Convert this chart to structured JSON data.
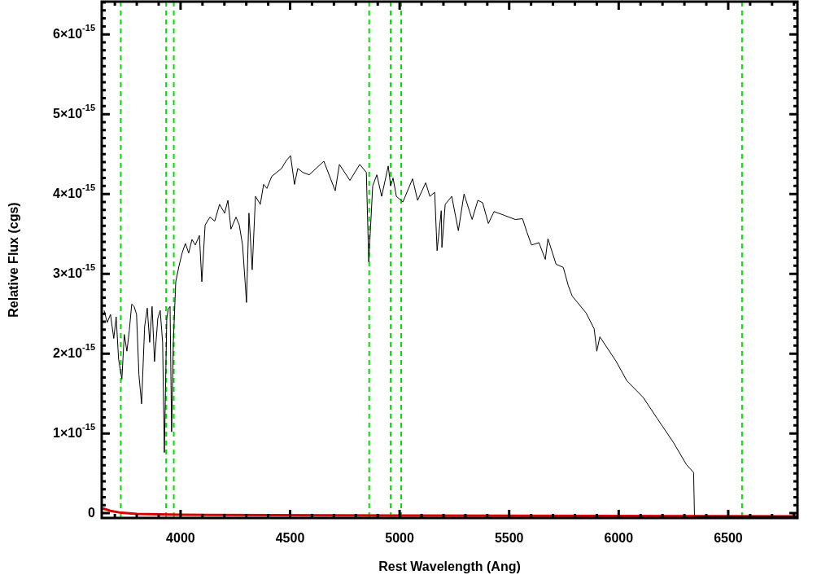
{
  "chart_data": {
    "type": "line",
    "xlabel": "Rest Wavelength (Ang)",
    "ylabel": "Relative Flux (cgs)",
    "marker": "none",
    "xlim": [
      3640,
      6816
    ],
    "ylim": [
      -6e-17,
      6.41e-15
    ],
    "xticks": [
      {
        "value": 3700,
        "label": null
      },
      {
        "value": 3800,
        "label": null
      },
      {
        "value": 3900,
        "label": null
      },
      4000,
      {
        "value": 4100,
        "label": null
      },
      {
        "value": 4200,
        "label": null
      },
      {
        "value": 4300,
        "label": null
      },
      {
        "value": 4400,
        "label": null
      },
      4500,
      {
        "value": 4600,
        "label": null
      },
      {
        "value": 4700,
        "label": null
      },
      {
        "value": 4800,
        "label": null
      },
      {
        "value": 4900,
        "label": null
      },
      5000,
      {
        "value": 5100,
        "label": null
      },
      {
        "value": 5200,
        "label": null
      },
      {
        "value": 5300,
        "label": null
      },
      {
        "value": 5400,
        "label": null
      },
      5500,
      {
        "value": 5600,
        "label": null
      },
      {
        "value": 5700,
        "label": null
      },
      {
        "value": 5800,
        "label": null
      },
      {
        "value": 5900,
        "label": null
      },
      6000,
      {
        "value": 6100,
        "label": null
      },
      {
        "value": 6200,
        "label": null
      },
      {
        "value": 6300,
        "label": null
      },
      {
        "value": 6400,
        "label": null
      },
      6500,
      {
        "value": 6600,
        "label": null
      },
      {
        "value": 6700,
        "label": null
      },
      {
        "value": 6800,
        "label": null
      }
    ],
    "yticks": [
      0,
      {
        "value": 1e-16,
        "label": null
      },
      {
        "value": 2e-16,
        "label": null
      },
      {
        "value": 3e-16,
        "label": null
      },
      {
        "value": 4e-16,
        "label": null
      },
      {
        "value": 5e-16,
        "label": null
      },
      {
        "value": 6e-16,
        "label": null
      },
      {
        "value": 7e-16,
        "label": null
      },
      {
        "value": 8e-16,
        "label": null
      },
      {
        "value": 9e-16,
        "label": null
      },
      {
        "value": 1e-15,
        "label": "1×10$^{-15}$"
      },
      {
        "value": 1.1e-15,
        "label": null
      },
      {
        "value": 1.2e-15,
        "label": null
      },
      {
        "value": 1.3e-15,
        "label": null
      },
      {
        "value": 1.4e-15,
        "label": null
      },
      {
        "value": 1.5e-15,
        "label": null
      },
      {
        "value": 1.6e-15,
        "label": null
      },
      {
        "value": 1.7e-15,
        "label": null
      },
      {
        "value": 1.8e-15,
        "label": null
      },
      {
        "value": 1.9e-15,
        "label": null
      },
      {
        "value": 2e-15,
        "label": "2×10$^{-15}$"
      },
      {
        "value": 2.1e-15,
        "label": null
      },
      {
        "value": 2.2e-15,
        "label": null
      },
      {
        "value": 2.3e-15,
        "label": null
      },
      {
        "value": 2.4e-15,
        "label": null
      },
      {
        "value": 2.5e-15,
        "label": null
      },
      {
        "value": 2.6e-15,
        "label": null
      },
      {
        "value": 2.7e-15,
        "label": null
      },
      {
        "value": 2.8e-15,
        "label": null
      },
      {
        "value": 2.9e-15,
        "label": null
      },
      {
        "value": 3e-15,
        "label": "3×10$^{-15}$"
      },
      {
        "value": 3.1e-15,
        "label": null
      },
      {
        "value": 3.2e-15,
        "label": null
      },
      {
        "value": 3.3e-15,
        "label": null
      },
      {
        "value": 3.4e-15,
        "label": null
      },
      {
        "value": 3.5e-15,
        "label": null
      },
      {
        "value": 3.6e-15,
        "label": null
      },
      {
        "value": 3.7e-15,
        "label": null
      },
      {
        "value": 3.8e-15,
        "label": null
      },
      {
        "value": 3.9e-15,
        "label": null
      },
      {
        "value": 4e-15,
        "label": "4×10$^{-15}$"
      },
      {
        "value": 4.1e-15,
        "label": null
      },
      {
        "value": 4.2e-15,
        "label": null
      },
      {
        "value": 4.3e-15,
        "label": null
      },
      {
        "value": 4.4e-15,
        "label": null
      },
      {
        "value": 4.5e-15,
        "label": null
      },
      {
        "value": 4.6e-15,
        "label": null
      },
      {
        "value": 4.7e-15,
        "label": null
      },
      {
        "value": 4.8e-15,
        "label": null
      },
      {
        "value": 4.9e-15,
        "label": null
      },
      {
        "value": 5e-15,
        "label": "5×10$^{-15}$"
      },
      {
        "value": 5.1e-15,
        "label": null
      },
      {
        "value": 5.2e-15,
        "label": null
      },
      {
        "value": 5.3e-15,
        "label": null
      },
      {
        "value": 5.4e-15,
        "label": null
      },
      {
        "value": 5.5e-15,
        "label": null
      },
      {
        "value": 5.6e-15,
        "label": null
      },
      {
        "value": 5.7e-15,
        "label": null
      },
      {
        "value": 5.8e-15,
        "label": null
      },
      {
        "value": 5.9e-15,
        "label": null
      },
      {
        "value": 6e-15,
        "label": "6×10$^{-15}$"
      },
      {
        "value": 6.1e-15,
        "label": null
      },
      {
        "value": 6.2e-15,
        "label": null
      },
      {
        "value": 6.3e-15,
        "label": null
      },
      {
        "value": 6.4e-15,
        "label": null
      }
    ],
    "series": [
      {
        "color": "#000000",
        "x": [
          3651,
          3665,
          3680,
          3695,
          3706,
          3717,
          3732,
          3743,
          3755,
          3766,
          3777,
          3788,
          3799,
          3810,
          3822,
          3836,
          3848,
          3859,
          3870,
          3881,
          3896,
          3907,
          3918,
          3926,
          3937,
          3944,
          3952,
          3959,
          3967,
          3978,
          3993,
          4007,
          4022,
          4037,
          4052,
          4067,
          4086,
          4097,
          4112,
          4134,
          4156,
          4178,
          4201,
          4216,
          4230,
          4253,
          4268,
          4283,
          4301,
          4312,
          4327,
          4342,
          4364,
          4379,
          4394,
          4416,
          4439,
          4461,
          4483,
          4502,
          4520,
          4535,
          4558,
          4587,
          4654,
          4706,
          4725,
          4773,
          4818,
          4848,
          4859,
          4877,
          4896,
          4918,
          4948,
          4959,
          4970,
          4985,
          5015,
          5059,
          5082,
          5119,
          5138,
          5160,
          5171,
          5190,
          5193,
          5208,
          5238,
          5268,
          5294,
          5331,
          5357,
          5379,
          5405,
          5431,
          5480,
          5528,
          5561,
          5580,
          5602,
          5636,
          5665,
          5677,
          5714,
          5747,
          5770,
          5788,
          5851,
          5888,
          5900,
          5914,
          5989,
          6037,
          6112,
          6175,
          6249,
          6309,
          6342,
          6346,
          6816
        ],
        "values": [
          2.54e-15,
          2.39e-15,
          2.49e-15,
          2.19e-15,
          2.46e-15,
          1.93e-15,
          1.68e-15,
          2.24e-15,
          2.03e-15,
          2.29e-15,
          2.62e-15,
          2.59e-15,
          2.49e-15,
          1.73e-15,
          1.37e-15,
          2.34e-15,
          2.57e-15,
          2.14e-15,
          2.59e-15,
          1.9e-15,
          2.44e-15,
          2.54e-15,
          2.14e-15,
          7.6e-16,
          2.44e-15,
          2.56e-15,
          2.59e-15,
          1.02e-15,
          2.14e-15,
          2.9e-15,
          3.1e-15,
          3.26e-15,
          3.38e-15,
          3.26e-15,
          3.43e-15,
          3.36e-15,
          3.48e-15,
          2.9e-15,
          3.61e-15,
          3.71e-15,
          3.66e-15,
          3.87e-15,
          3.76e-15,
          3.92e-15,
          3.56e-15,
          3.71e-15,
          3.61e-15,
          3.36e-15,
          2.64e-15,
          3.76e-15,
          3.05e-15,
          3.97e-15,
          3.87e-15,
          4.12e-15,
          4.07e-15,
          4.22e-15,
          4.27e-15,
          4.32e-15,
          4.42e-15,
          4.48e-15,
          4.12e-15,
          4.32e-15,
          4.27e-15,
          4.24e-15,
          4.41e-15,
          4.04e-15,
          4.37e-15,
          4.17e-15,
          4.37e-15,
          4.27e-15,
          3.15e-15,
          4.1e-15,
          4.24e-15,
          3.97e-15,
          4.35e-15,
          4.1e-15,
          4.2e-15,
          3.97e-15,
          3.9e-15,
          4.19e-15,
          3.92e-15,
          4.14e-15,
          3.97e-15,
          4.02e-15,
          3.29e-15,
          3.79e-15,
          3.33e-15,
          3.87e-15,
          3.97e-15,
          3.54e-15,
          4e-15,
          3.68e-15,
          3.92e-15,
          3.89e-15,
          3.63e-15,
          3.78e-15,
          3.73e-15,
          3.68e-15,
          3.69e-15,
          3.53e-15,
          3.36e-15,
          3.39e-15,
          3.18e-15,
          3.44e-15,
          3.12e-15,
          3.08e-15,
          2.85e-15,
          2.72e-15,
          2.51e-15,
          2.31e-15,
          2.03e-15,
          2.21e-15,
          1.9e-15,
          1.66e-15,
          1.45e-15,
          1.19e-15,
          8.9e-16,
          6.1e-16,
          5.1e-16,
          -4e-17,
          -4e-17
        ]
      },
      {
        "color": "#dd0000",
        "x": [
          3645,
          3680,
          3720,
          3800,
          4000,
          5000,
          6816
        ],
        "values": [
          6e-17,
          3e-17,
          1e-17,
          -1e-17,
          -2e-17,
          -3e-17,
          -4e-17
        ]
      }
    ],
    "ref_lines": [
      {
        "axis": "x",
        "value": 3727,
        "color": "#00e000",
        "line_style": "dashed"
      },
      {
        "axis": "x",
        "value": 3934,
        "color": "#00e000",
        "line_style": "dashed"
      },
      {
        "axis": "x",
        "value": 3969,
        "color": "#00e000",
        "line_style": "dashed"
      },
      {
        "axis": "x",
        "value": 4861,
        "color": "#00e000",
        "line_style": "dashed"
      },
      {
        "axis": "x",
        "value": 4959,
        "color": "#00e000",
        "line_style": "dashed"
      },
      {
        "axis": "x",
        "value": 5007,
        "color": "#00e000",
        "line_style": "dashed"
      },
      {
        "axis": "x",
        "value": 6563,
        "color": "#00e000",
        "line_style": "dashed"
      }
    ]
  }
}
